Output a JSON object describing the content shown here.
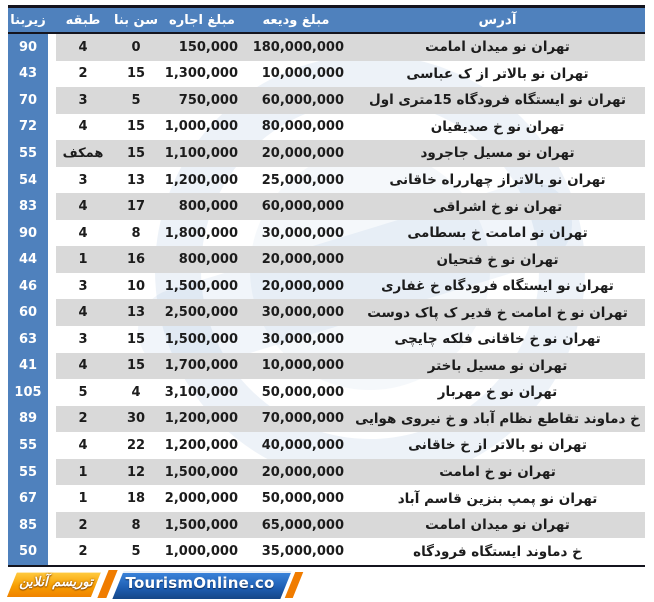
{
  "chart_data": {
    "type": "table",
    "direction": "rtl",
    "headers": {
      "address": "آدرس",
      "deposit": "مبلغ ودیعه",
      "rent": "مبلغ اجاره",
      "age": "سن بنا",
      "floor": "طبقه",
      "area": "زیربنا"
    },
    "rows": [
      {
        "area": "90",
        "floor": "4",
        "age": "0",
        "rent": "150,000",
        "deposit": "180,000,000",
        "address": "تهران نو میدان امامت"
      },
      {
        "area": "43",
        "floor": "2",
        "age": "15",
        "rent": "1,300,000",
        "deposit": "10,000,000",
        "address": "تهران نو بالاتر از ک عباسی"
      },
      {
        "area": "70",
        "floor": "3",
        "age": "5",
        "rent": "750,000",
        "deposit": "60,000,000",
        "address": "تهران نو ایستگاه فرودگاه 15متری اول"
      },
      {
        "area": "72",
        "floor": "4",
        "age": "15",
        "rent": "1,000,000",
        "deposit": "80,000,000",
        "address": "تهران نو خ صدیقیان"
      },
      {
        "area": "55",
        "floor": "همکف",
        "age": "15",
        "rent": "1,100,000",
        "deposit": "20,000,000",
        "address": "تهران نو مسیل جاجرود"
      },
      {
        "area": "54",
        "floor": "3",
        "age": "13",
        "rent": "1,200,000",
        "deposit": "25,000,000",
        "address": "تهران نو بالاتراز چهارراه خاقانی"
      },
      {
        "area": "83",
        "floor": "4",
        "age": "17",
        "rent": "800,000",
        "deposit": "60,000,000",
        "address": "تهران نو خ اشراقی"
      },
      {
        "area": "90",
        "floor": "4",
        "age": "8",
        "rent": "1,800,000",
        "deposit": "30,000,000",
        "address": "تهران نو امامت خ بسطامی"
      },
      {
        "area": "44",
        "floor": "1",
        "age": "16",
        "rent": "800,000",
        "deposit": "20,000,000",
        "address": "تهران نو خ فتحیان"
      },
      {
        "area": "46",
        "floor": "3",
        "age": "10",
        "rent": "1,500,000",
        "deposit": "20,000,000",
        "address": "تهران نو ایستگاه فرودگاه خ غفاری"
      },
      {
        "area": "60",
        "floor": "4",
        "age": "13",
        "rent": "2,500,000",
        "deposit": "30,000,000",
        "address": "تهران نو خ امامت خ قدیر ک پاک دوست"
      },
      {
        "area": "63",
        "floor": "3",
        "age": "15",
        "rent": "1,500,000",
        "deposit": "30,000,000",
        "address": "تهران نو خ خاقانی فلکه چایچی"
      },
      {
        "area": "41",
        "floor": "4",
        "age": "15",
        "rent": "1,700,000",
        "deposit": "10,000,000",
        "address": "تهران نو مسیل باختر"
      },
      {
        "area": "105",
        "floor": "5",
        "age": "4",
        "rent": "3,100,000",
        "deposit": "50,000,000",
        "address": "تهران نو خ مهربار"
      },
      {
        "area": "89",
        "floor": "2",
        "age": "30",
        "rent": "1,200,000",
        "deposit": "70,000,000",
        "address": "خ دماوند تقاطع نظام آباد و خ نیروی هوایی"
      },
      {
        "area": "55",
        "floor": "4",
        "age": "22",
        "rent": "1,200,000",
        "deposit": "40,000,000",
        "address": "تهران نو بالاتر از خ خاقانی"
      },
      {
        "area": "55",
        "floor": "1",
        "age": "12",
        "rent": "1,500,000",
        "deposit": "20,000,000",
        "address": "تهران نو خ امامت"
      },
      {
        "area": "67",
        "floor": "1",
        "age": "18",
        "rent": "2,000,000",
        "deposit": "50,000,000",
        "address": "تهران نو پمپ بنزین قاسم آباد"
      },
      {
        "area": "85",
        "floor": "2",
        "age": "8",
        "rent": "1,500,000",
        "deposit": "65,000,000",
        "address": "تهران نو میدان امامت"
      },
      {
        "area": "50",
        "floor": "2",
        "age": "5",
        "rent": "1,000,000",
        "deposit": "35,000,000",
        "address": "خ دماوند ایستگاه فرودگاه"
      }
    ]
  },
  "branding": {
    "logo_fa": "توریسم آنلاین",
    "logo_en": "TourismOnline.co"
  },
  "colors": {
    "header_blue": "#4f81bd",
    "row_gray": "#d9d9d9",
    "border_dark": "#14141e",
    "logo_blue": "#1d5cb0",
    "logo_orange": "#f07c00"
  }
}
